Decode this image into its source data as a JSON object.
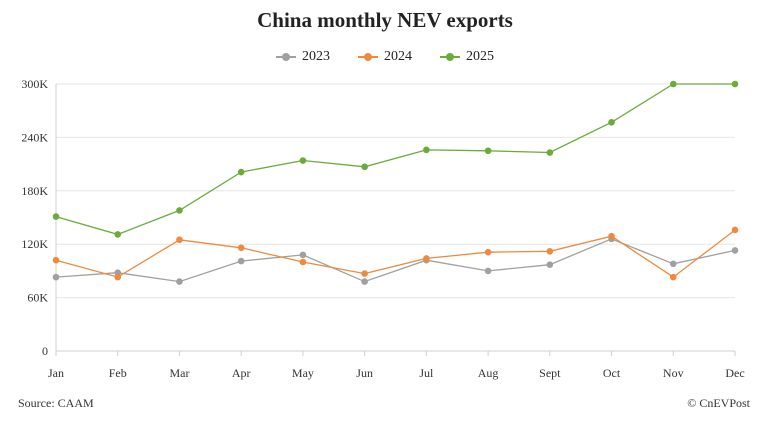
{
  "chart_data": {
    "type": "line",
    "title": "China monthly NEV exports",
    "categories": [
      "Jan",
      "Feb",
      "Mar",
      "Apr",
      "May",
      "Jun",
      "Jul",
      "Aug",
      "Sept",
      "Oct",
      "Nov",
      "Dec"
    ],
    "ylim": [
      0,
      300000
    ],
    "yticks": [
      0,
      60000,
      120000,
      180000,
      240000,
      300000
    ],
    "ytick_labels": [
      "0",
      "60K",
      "120K",
      "180K",
      "240K",
      "300K"
    ],
    "legend_position": "top-center",
    "grid": true,
    "series": [
      {
        "name": "2023",
        "color": "#a0a0a0",
        "values": [
          83000,
          88000,
          78000,
          101000,
          108000,
          78000,
          102000,
          90000,
          97000,
          126000,
          98000,
          113000
        ]
      },
      {
        "name": "2024",
        "color": "#ed8a3f",
        "values": [
          102000,
          83000,
          125000,
          116000,
          100000,
          87000,
          104000,
          111000,
          112000,
          129000,
          83000,
          136000
        ]
      },
      {
        "name": "2025",
        "color": "#6aab3c",
        "values": [
          151000,
          131000,
          158000,
          201000,
          214000,
          207000,
          226000,
          225000,
          223000,
          257000,
          300000,
          300000
        ]
      }
    ]
  },
  "footer": {
    "source": "Source: CAAM",
    "credit": "© CnEVPost"
  }
}
